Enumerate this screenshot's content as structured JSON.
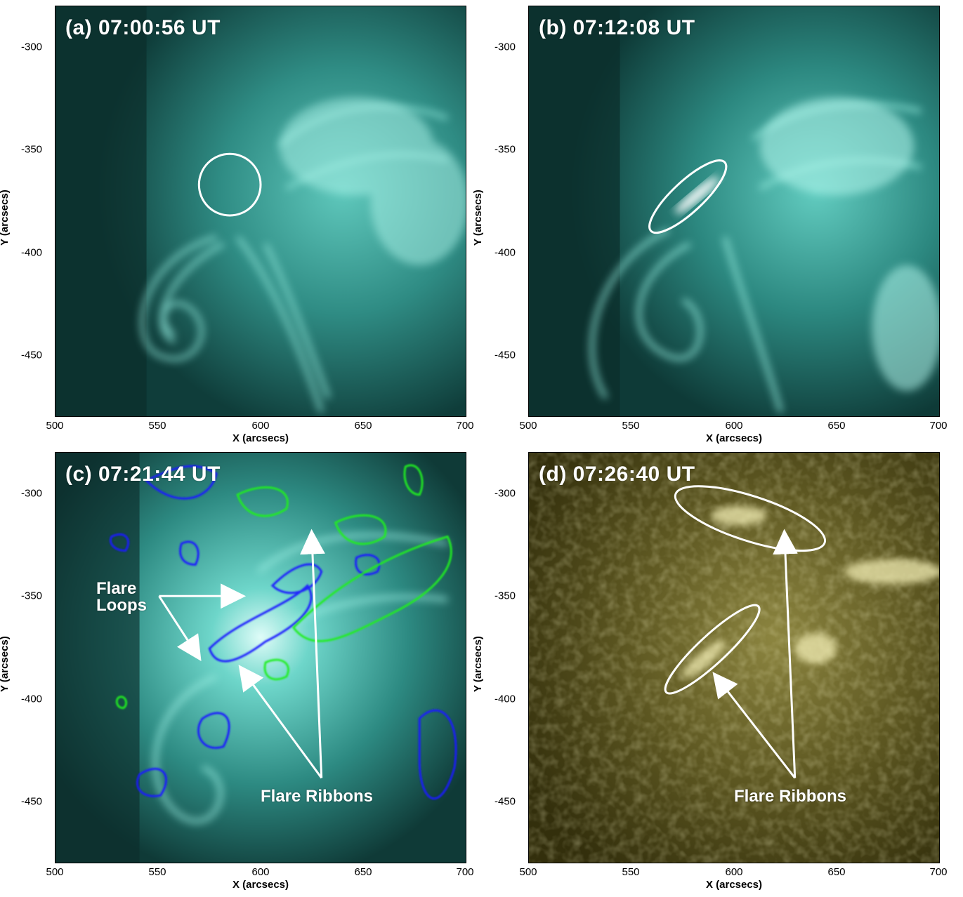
{
  "axes": {
    "xlabel": "X (arcsecs)",
    "ylabel": "Y (arcsecs)",
    "xticks": [
      "500",
      "550",
      "600",
      "650",
      "700"
    ],
    "yticks": [
      "-300",
      "-350",
      "-400",
      "-450"
    ]
  },
  "panels": [
    {
      "id": "a",
      "label": "(a) 07:00:56 UT",
      "colormap": "teal-euv"
    },
    {
      "id": "b",
      "label": "(b) 07:12:08 UT",
      "colormap": "teal-euv"
    },
    {
      "id": "c",
      "label": "(c) 07:21:44 UT",
      "colormap": "teal-euv",
      "contours": [
        {
          "color": "#0000ff"
        },
        {
          "color": "#00ee00"
        }
      ],
      "annotations": {
        "loops": "Flare\nLoops",
        "ribbons": "Flare Ribbons"
      }
    },
    {
      "id": "d",
      "label": "(d) 07:26:40 UT",
      "colormap": "olive-uv",
      "annotations": {
        "ribbons": "Flare Ribbons"
      }
    }
  ],
  "colors": {
    "teal_bright": "#9ef0e6",
    "teal_dark": "#0b2e2c",
    "olive_bright": "#f4f0b4",
    "olive_dark": "#2a2608"
  }
}
